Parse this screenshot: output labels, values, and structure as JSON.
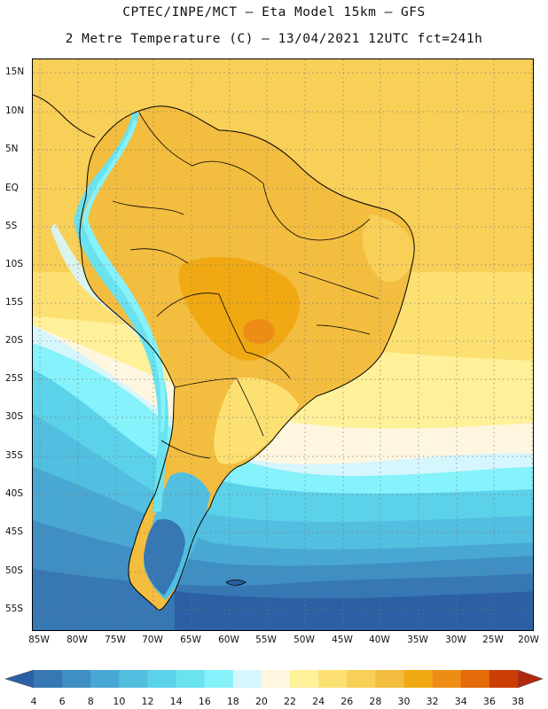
{
  "header": {
    "title_line1": "CPTEC/INPE/MCT –  Eta Model 15km – GFS",
    "title_line2": "2 Metre Temperature (C) – 13/04/2021 12UTC fct=241h"
  },
  "map": {
    "lat_labels": [
      "15N",
      "10N",
      "5N",
      "EQ",
      "5S",
      "10S",
      "15S",
      "20S",
      "25S",
      "30S",
      "35S",
      "40S",
      "45S",
      "50S",
      "55S"
    ],
    "lon_labels": [
      "85W",
      "80W",
      "75W",
      "70W",
      "65W",
      "60W",
      "55W",
      "50W",
      "45W",
      "40W",
      "35W",
      "30W",
      "25W",
      "20W"
    ],
    "grid": "dotted"
  },
  "colorbar": {
    "ticks": [
      "4",
      "6",
      "8",
      "10",
      "12",
      "14",
      "16",
      "18",
      "20",
      "22",
      "24",
      "26",
      "28",
      "30",
      "32",
      "34",
      "36",
      "38"
    ],
    "colors": [
      "#2c5fa3",
      "#3677b4",
      "#3f8fc4",
      "#49a8d3",
      "#52bee0",
      "#5bd2ea",
      "#6ae2f0",
      "#86f2fb",
      "#d6f6fd",
      "#fff6df",
      "#fff09a",
      "#fde072",
      "#f8cf57",
      "#f3bd3f",
      "#f0a912",
      "#ee8d16",
      "#e46a0a",
      "#cc3d04",
      "#b3280b"
    ]
  },
  "colors": {
    "ocean_tropical": "#f8cf57",
    "ocean_warm": "#fde072",
    "ocean_mid": "#fff09a",
    "ocean_cool": "#52bee0",
    "ocean_cold": "#2c5fa3",
    "land_warm": "#f3bd3f",
    "land_hot": "#f0a912",
    "andes": "#6ae2f0"
  }
}
